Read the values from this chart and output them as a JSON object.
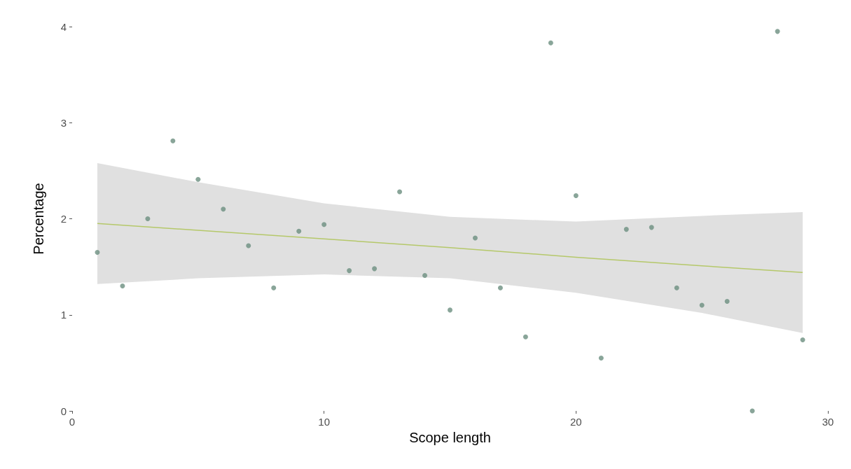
{
  "chart_data": {
    "type": "scatter",
    "xlabel": "Scope length",
    "ylabel": "Percentage",
    "xlim": [
      0,
      30
    ],
    "ylim": [
      0,
      4
    ],
    "xticks": [
      0,
      10,
      20,
      30
    ],
    "yticks": [
      0,
      1,
      2,
      3,
      4
    ],
    "grid": false,
    "series": [
      {
        "marker": "circle",
        "color": "#6b8e7f",
        "x": [
          1,
          2,
          3,
          4,
          5,
          6,
          7,
          8,
          9,
          10,
          11,
          12,
          13,
          14,
          15,
          16,
          17,
          18,
          19,
          20,
          21,
          22,
          23,
          24,
          25,
          26,
          27,
          28,
          29
        ],
        "values": [
          1.65,
          1.3,
          2.0,
          2.81,
          2.41,
          2.1,
          1.72,
          1.28,
          1.87,
          1.94,
          1.46,
          1.48,
          2.28,
          1.41,
          1.05,
          1.8,
          1.28,
          0.77,
          3.83,
          2.24,
          0.55,
          1.89,
          1.91,
          1.28,
          1.1,
          1.14,
          0,
          3.95,
          0.74
        ]
      },
      {
        "type": "line",
        "color": "#b5c86a",
        "x": [
          1,
          5,
          10,
          15,
          20,
          25,
          29
        ],
        "values": [
          1.95,
          1.88,
          1.79,
          1.7,
          1.6,
          1.51,
          1.44
        ],
        "lower": [
          1.32,
          1.38,
          1.42,
          1.38,
          1.23,
          1.02,
          0.81
        ],
        "upper": [
          2.58,
          2.38,
          2.16,
          2.02,
          1.97,
          2.03,
          2.07
        ]
      }
    ]
  }
}
